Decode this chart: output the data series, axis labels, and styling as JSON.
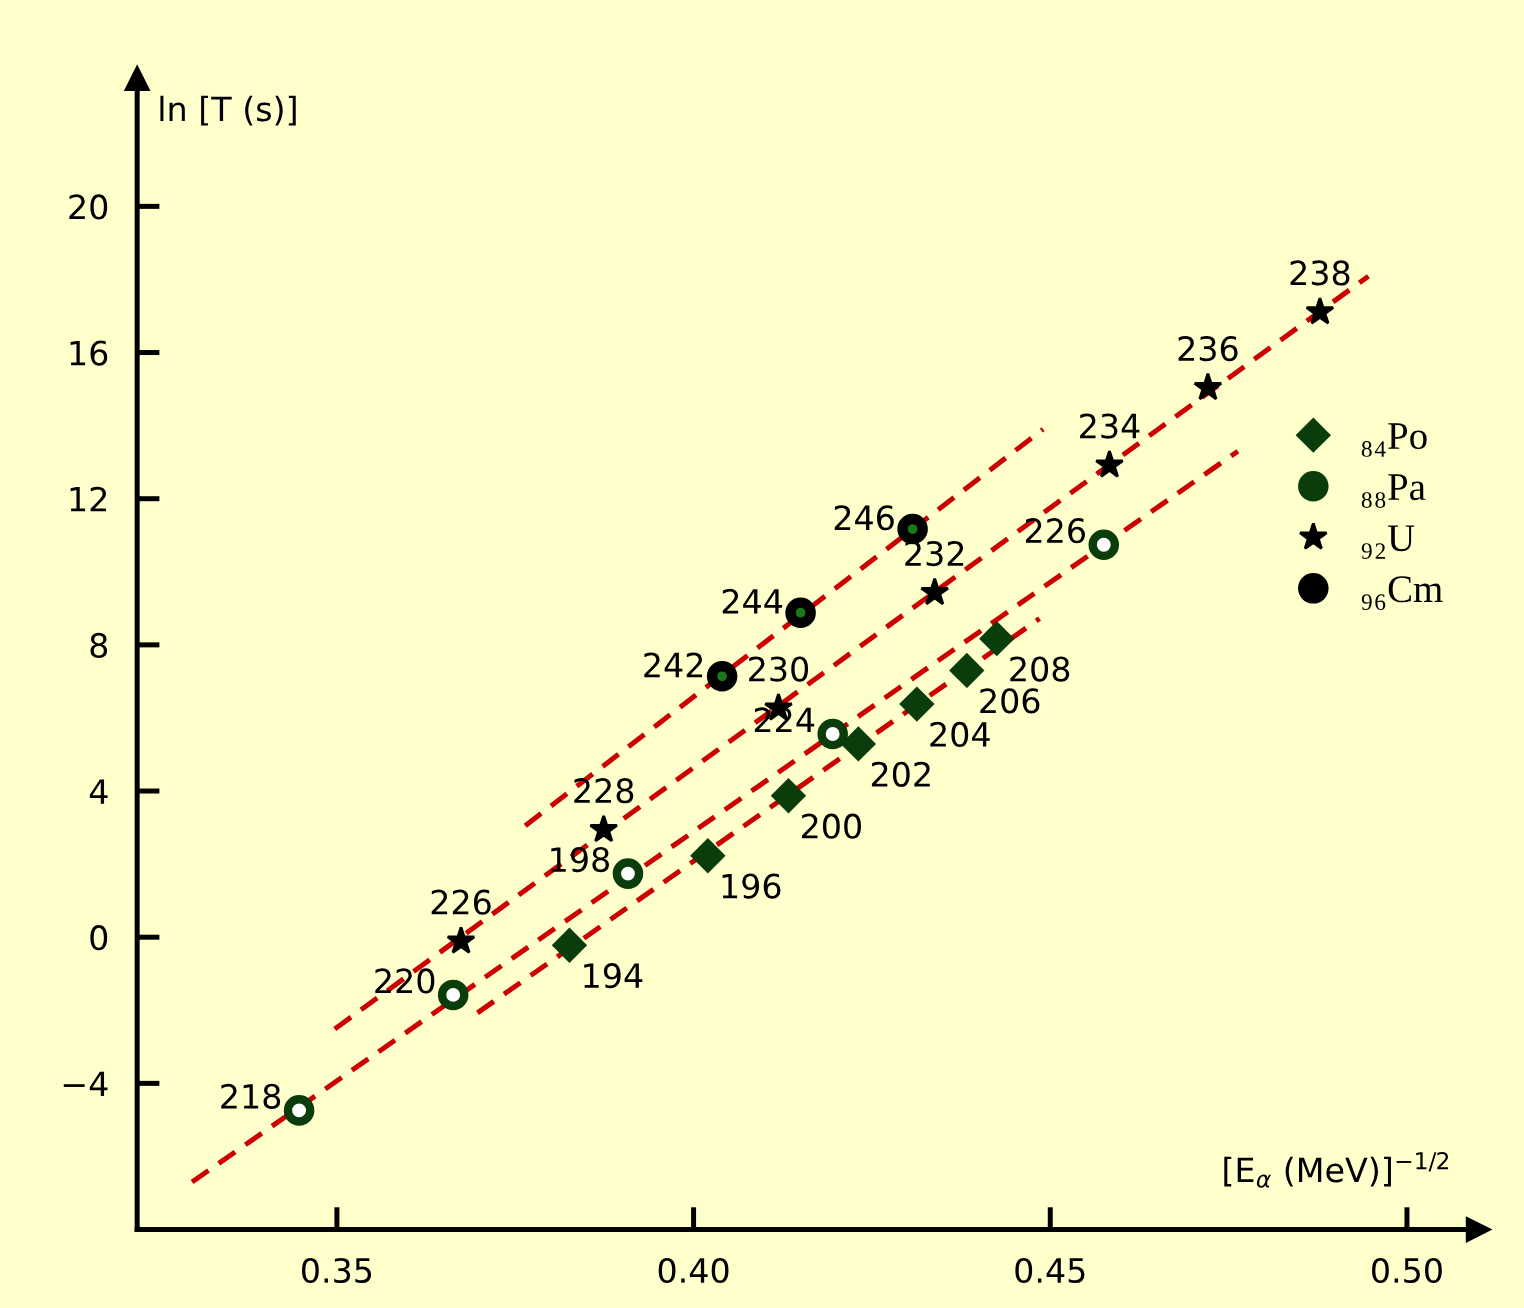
{
  "chart_data": {
    "type": "scatter",
    "xlabel": "[E$_{α}$ (MeV)]$^{−1/2}$",
    "ylabel": "ln [T (s)]",
    "xlim": [
      0.322,
      0.51
    ],
    "ylim": [
      -8,
      23.5
    ],
    "xticks": [
      {
        "value": 0.35,
        "label": "0.35"
      },
      {
        "value": 0.4,
        "label": "0.40"
      },
      {
        "value": 0.45,
        "label": "0.45"
      },
      {
        "value": 0.5,
        "label": "0.50"
      }
    ],
    "yticks": [
      -4,
      0,
      4,
      8,
      12,
      16,
      20
    ],
    "grid": false,
    "legend": "right",
    "annotations": [
      {
        "text": "194",
        "x": 0.3826,
        "y": -0.22
      },
      {
        "text": "196",
        "x": 0.402,
        "y": 2.23
      },
      {
        "text": "200",
        "x": 0.4133,
        "y": 3.87
      },
      {
        "text": "202",
        "x": 0.4231,
        "y": 5.29
      },
      {
        "text": "204",
        "x": 0.4313,
        "y": 6.38
      },
      {
        "text": "206",
        "x": 0.4383,
        "y": 7.3
      },
      {
        "text": "208",
        "x": 0.4425,
        "y": 8.17
      },
      {
        "text": "218",
        "x": 0.3447,
        "y": -4.74
      },
      {
        "text": "220",
        "x": 0.3663,
        "y": -1.58
      },
      {
        "text": "198",
        "x": 0.3908,
        "y": 1.74
      },
      {
        "text": "224",
        "x": 0.4195,
        "y": 5.56
      },
      {
        "text": "226",
        "x": 0.4575,
        "y": 10.74
      },
      {
        "text": "226",
        "x": 0.3674,
        "y": -0.11
      },
      {
        "text": "228",
        "x": 0.3874,
        "y": 2.94
      },
      {
        "text": "230",
        "x": 0.4119,
        "y": 6.27
      },
      {
        "text": "232",
        "x": 0.4338,
        "y": 9.43
      },
      {
        "text": "234",
        "x": 0.4583,
        "y": 12.92
      },
      {
        "text": "236",
        "x": 0.4721,
        "y": 15.04
      },
      {
        "text": "238",
        "x": 0.4878,
        "y": 17.11
      },
      {
        "text": "242",
        "x": 0.404,
        "y": 7.14
      },
      {
        "text": "244",
        "x": 0.415,
        "y": 8.88
      },
      {
        "text": "246",
        "x": 0.4307,
        "y": 11.17
      }
    ],
    "series": [
      {
        "name": "₈₄Po",
        "color": "#0a3d0a",
        "marker": "diamond",
        "x": [
          0.3826,
          0.402,
          0.4133,
          0.4231,
          0.4313,
          0.4383,
          0.4425
        ],
        "values": [
          -0.22,
          2.23,
          3.87,
          5.29,
          6.38,
          7.3,
          8.17
        ]
      },
      {
        "name": "₈₈Pa",
        "color": "#0a3d0a",
        "marker": "circle",
        "x": [
          0.3447,
          0.3663,
          0.3908,
          0.4195,
          0.4575
        ],
        "values": [
          -4.74,
          -1.58,
          1.74,
          5.56,
          10.74
        ]
      },
      {
        "name": "₉₂U",
        "color": "#000000",
        "marker": "star",
        "x": [
          0.3674,
          0.3874,
          0.4119,
          0.4338,
          0.4583,
          0.4721,
          0.4878
        ],
        "values": [
          -0.11,
          2.94,
          6.27,
          9.43,
          12.92,
          15.04,
          17.11
        ]
      },
      {
        "name": "₉₆Cm",
        "color": "#000000",
        "marker": "circle",
        "x": [
          0.404,
          0.415,
          0.4307
        ],
        "values": [
          7.14,
          8.88,
          11.17
        ]
      },
      {
        "type": "line",
        "color": "#cc0000",
        "line_style": "dashed",
        "x": [
          0.3764,
          0.449
        ],
        "values": [
          3.05,
          13.9
        ]
      },
      {
        "type": "line",
        "color": "#cc0000",
        "line_style": "dashed",
        "x": [
          0.3497,
          0.4946
        ],
        "values": [
          -2.51,
          18.09
        ]
      },
      {
        "type": "line",
        "color": "#cc0000",
        "line_style": "dashed",
        "x": [
          0.3297,
          0.4763
        ],
        "values": [
          -6.7,
          13.3
        ]
      },
      {
        "type": "line",
        "color": "#cc0000",
        "line_style": "dashed",
        "x": [
          0.3697,
          0.4485
        ],
        "values": [
          -2.07,
          8.72
        ]
      }
    ]
  }
}
